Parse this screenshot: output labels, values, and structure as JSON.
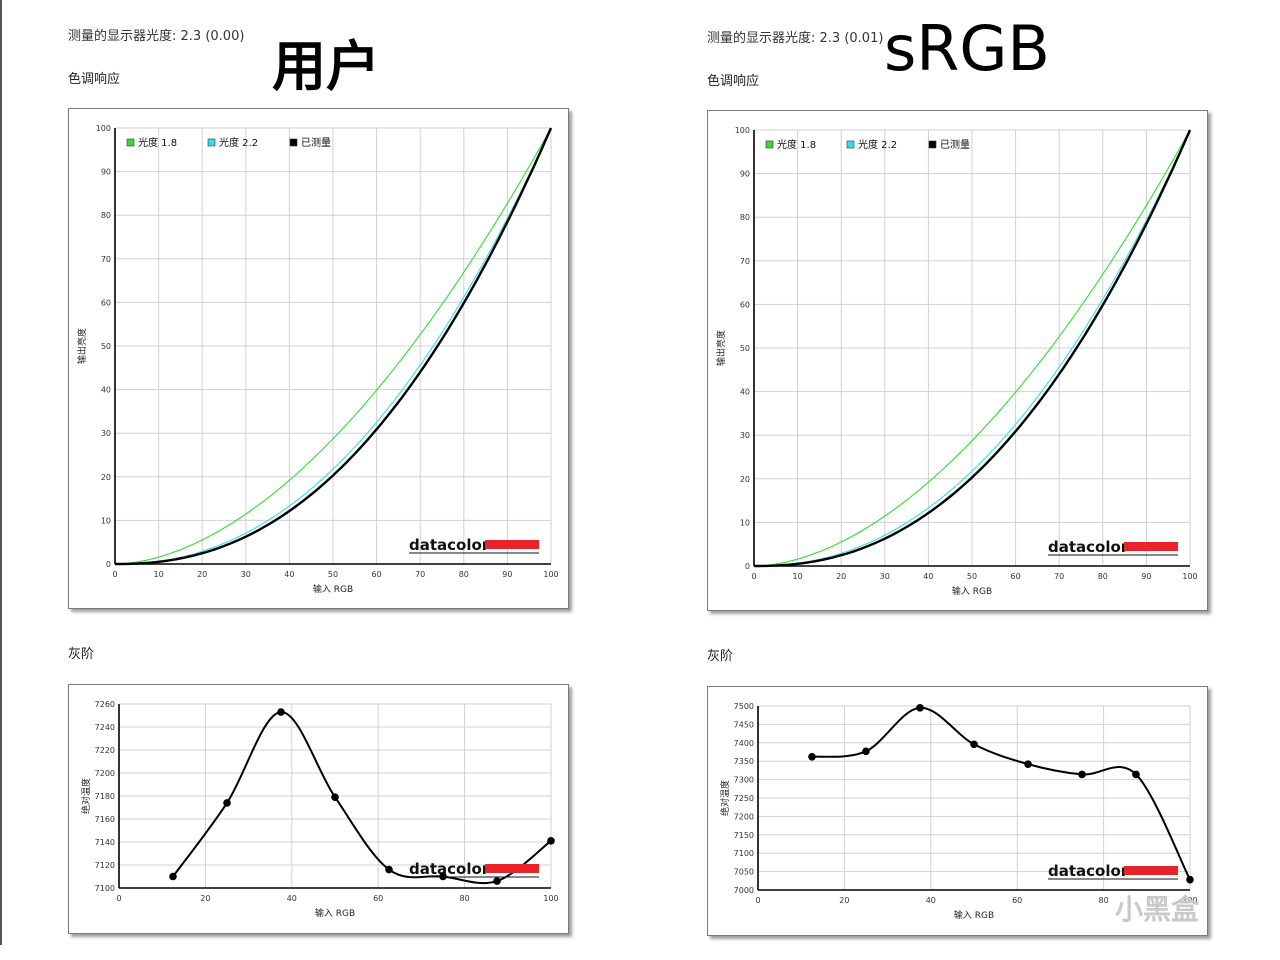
{
  "left": {
    "header": "测量的显示器光度:  2.3 (0.00)",
    "handwritten": "用户",
    "tone_title": "色调响应",
    "gray_title": "灰阶"
  },
  "right": {
    "header": "测量的显示器光度:  2.3 (0.01)",
    "handwritten": "sRGB",
    "tone_title": "色调响应",
    "gray_title": "灰阶"
  },
  "brand": "datacolor",
  "watermark": "小黑盒",
  "colors": {
    "gamma18": "#33dd33",
    "gamma22": "#33e0e8",
    "measured": "#000000",
    "brand_red": "#e8232a",
    "grid": "#d0d0d0"
  },
  "chart_data": [
    {
      "id": "tone-left",
      "type": "line",
      "xlabel": "输入 RGB",
      "ylabel": "输出亮度",
      "xlim": [
        0,
        100
      ],
      "ylim": [
        0,
        100
      ],
      "xticks": [
        0,
        10,
        20,
        30,
        40,
        50,
        60,
        70,
        80,
        90,
        100
      ],
      "yticks": [
        0,
        10,
        20,
        30,
        40,
        50,
        60,
        70,
        80,
        90,
        100
      ],
      "grid": true,
      "legend": "top-left",
      "series": [
        {
          "name": "光度 1.8",
          "gamma": 1.8
        },
        {
          "name": "光度 2.2",
          "gamma": 2.2
        },
        {
          "name": "已测量",
          "gamma": 2.3
        }
      ]
    },
    {
      "id": "tone-right",
      "type": "line",
      "xlabel": "输入 RGB",
      "ylabel": "输出亮度",
      "xlim": [
        0,
        100
      ],
      "ylim": [
        0,
        100
      ],
      "xticks": [
        0,
        10,
        20,
        30,
        40,
        50,
        60,
        70,
        80,
        90,
        100
      ],
      "yticks": [
        0,
        10,
        20,
        30,
        40,
        50,
        60,
        70,
        80,
        90,
        100
      ],
      "grid": true,
      "legend": "top-left",
      "series": [
        {
          "name": "光度 1.8",
          "gamma": 1.8
        },
        {
          "name": "光度 2.2",
          "gamma": 2.2
        },
        {
          "name": "已测量",
          "gamma": 2.3
        }
      ]
    },
    {
      "id": "gray-left",
      "type": "line",
      "xlabel": "输入 RGB",
      "ylabel": "绝对温度",
      "xlim": [
        0,
        100
      ],
      "ylim": [
        7100,
        7260
      ],
      "xticks": [
        0,
        20,
        40,
        60,
        80,
        100
      ],
      "yticks": [
        7100,
        7120,
        7140,
        7160,
        7180,
        7200,
        7220,
        7240,
        7260
      ],
      "grid": true,
      "x": [
        12.5,
        25,
        37.5,
        50,
        62.5,
        75,
        87.5,
        100
      ],
      "values": [
        7110,
        7174,
        7253,
        7179,
        7116,
        7110,
        7106,
        7141
      ]
    },
    {
      "id": "gray-right",
      "type": "line",
      "xlabel": "输入 RGB",
      "ylabel": "绝对温度",
      "xlim": [
        0,
        100
      ],
      "ylim": [
        7000,
        7500
      ],
      "xticks": [
        0,
        20,
        40,
        60,
        80,
        100
      ],
      "yticks": [
        7000,
        7050,
        7100,
        7150,
        7200,
        7250,
        7300,
        7350,
        7400,
        7450,
        7500
      ],
      "grid": true,
      "x": [
        12.5,
        25,
        37.5,
        50,
        62.5,
        75,
        87.5,
        100
      ],
      "values": [
        7362,
        7377,
        7495,
        7396,
        7342,
        7314,
        7314,
        7028
      ]
    }
  ]
}
